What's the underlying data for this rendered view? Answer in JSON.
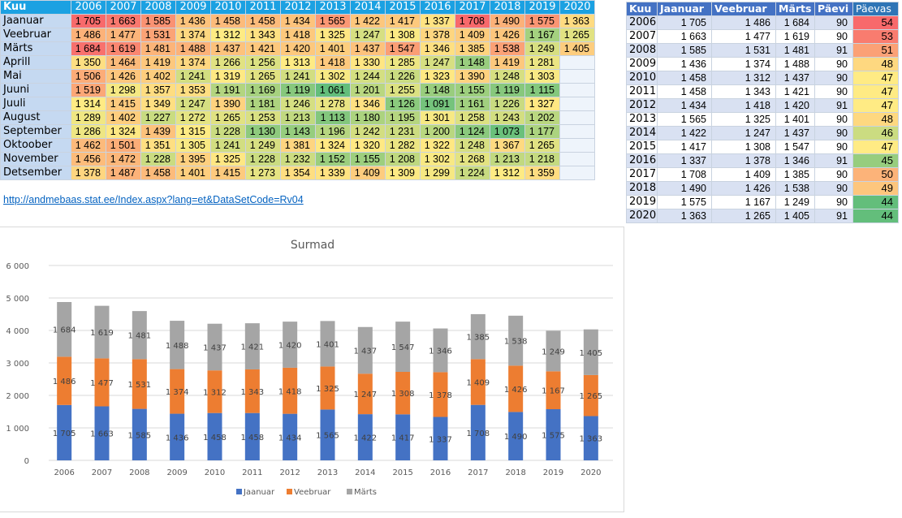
{
  "monthly_table": {
    "header_label": "Kuu",
    "years": [
      "2006",
      "2007",
      "2008",
      "2009",
      "2010",
      "2011",
      "2012",
      "2013",
      "2014",
      "2015",
      "2016",
      "2017",
      "2018",
      "2019",
      "2020"
    ],
    "rows": [
      {
        "month": "Jaanuar",
        "values": [
          1705,
          1663,
          1585,
          1436,
          1458,
          1458,
          1434,
          1565,
          1422,
          1417,
          1337,
          1708,
          1490,
          1575,
          1363
        ]
      },
      {
        "month": "Veebruar",
        "values": [
          1486,
          1477,
          1531,
          1374,
          1312,
          1343,
          1418,
          1325,
          1247,
          1308,
          1378,
          1409,
          1426,
          1167,
          1265
        ]
      },
      {
        "month": "Märts",
        "values": [
          1684,
          1619,
          1481,
          1488,
          1437,
          1421,
          1420,
          1401,
          1437,
          1547,
          1346,
          1385,
          1538,
          1249,
          1405
        ]
      },
      {
        "month": "Aprill",
        "values": [
          1350,
          1464,
          1419,
          1374,
          1266,
          1256,
          1313,
          1418,
          1330,
          1285,
          1247,
          1148,
          1419,
          1281,
          null
        ]
      },
      {
        "month": "Mai",
        "values": [
          1506,
          1426,
          1402,
          1241,
          1319,
          1265,
          1241,
          1302,
          1244,
          1226,
          1323,
          1390,
          1248,
          1303,
          null
        ]
      },
      {
        "month": "Juuni",
        "values": [
          1519,
          1298,
          1357,
          1353,
          1191,
          1169,
          1119,
          1061,
          1201,
          1255,
          1148,
          1155,
          1119,
          1115,
          null
        ]
      },
      {
        "month": "Juuli",
        "values": [
          1314,
          1415,
          1349,
          1247,
          1390,
          1181,
          1246,
          1278,
          1346,
          1126,
          1091,
          1161,
          1226,
          1327,
          null
        ]
      },
      {
        "month": "August",
        "values": [
          1289,
          1402,
          1227,
          1272,
          1265,
          1253,
          1213,
          1113,
          1180,
          1195,
          1301,
          1258,
          1243,
          1202,
          null
        ]
      },
      {
        "month": "September",
        "values": [
          1286,
          1324,
          1439,
          1315,
          1228,
          1130,
          1143,
          1196,
          1242,
          1231,
          1200,
          1124,
          1073,
          1177,
          null
        ]
      },
      {
        "month": "Oktoober",
        "values": [
          1462,
          1501,
          1351,
          1305,
          1241,
          1249,
          1381,
          1324,
          1320,
          1282,
          1322,
          1248,
          1367,
          1265,
          null
        ]
      },
      {
        "month": "November",
        "values": [
          1456,
          1472,
          1228,
          1395,
          1325,
          1228,
          1232,
          1152,
          1155,
          1208,
          1302,
          1268,
          1213,
          1218,
          null
        ]
      },
      {
        "month": "Detsember",
        "values": [
          1378,
          1487,
          1458,
          1401,
          1415,
          1273,
          1354,
          1339,
          1409,
          1309,
          1299,
          1224,
          1312,
          1359,
          null
        ]
      }
    ],
    "color_scale": {
      "low": "#63be7b",
      "mid": "#ffeb84",
      "high": "#f8696b"
    }
  },
  "source_link": {
    "text": "http://andmebaas.stat.ee/Index.aspx?lang=et&DataSetCode=Rv04"
  },
  "yearly_table": {
    "headers": [
      "Kuu",
      "Jaanuar",
      "Veebruar",
      "Märts",
      "Päevi",
      "Päevas"
    ],
    "rows": [
      {
        "year": "2006",
        "jaanuar": 1705,
        "veebruar": 1486,
        "marts": 1684,
        "paevi": 90,
        "paevas": 54
      },
      {
        "year": "2007",
        "jaanuar": 1663,
        "veebruar": 1477,
        "marts": 1619,
        "paevi": 90,
        "paevas": 53
      },
      {
        "year": "2008",
        "jaanuar": 1585,
        "veebruar": 1531,
        "marts": 1481,
        "paevi": 91,
        "paevas": 51
      },
      {
        "year": "2009",
        "jaanuar": 1436,
        "veebruar": 1374,
        "marts": 1488,
        "paevi": 90,
        "paevas": 48
      },
      {
        "year": "2010",
        "jaanuar": 1458,
        "veebruar": 1312,
        "marts": 1437,
        "paevi": 90,
        "paevas": 47
      },
      {
        "year": "2011",
        "jaanuar": 1458,
        "veebruar": 1343,
        "marts": 1421,
        "paevi": 90,
        "paevas": 47
      },
      {
        "year": "2012",
        "jaanuar": 1434,
        "veebruar": 1418,
        "marts": 1420,
        "paevi": 91,
        "paevas": 47
      },
      {
        "year": "2013",
        "jaanuar": 1565,
        "veebruar": 1325,
        "marts": 1401,
        "paevi": 90,
        "paevas": 48
      },
      {
        "year": "2014",
        "jaanuar": 1422,
        "veebruar": 1247,
        "marts": 1437,
        "paevi": 90,
        "paevas": 46
      },
      {
        "year": "2015",
        "jaanuar": 1417,
        "veebruar": 1308,
        "marts": 1547,
        "paevi": 90,
        "paevas": 47
      },
      {
        "year": "2016",
        "jaanuar": 1337,
        "veebruar": 1378,
        "marts": 1346,
        "paevi": 91,
        "paevas": 45
      },
      {
        "year": "2017",
        "jaanuar": 1708,
        "veebruar": 1409,
        "marts": 1385,
        "paevi": 90,
        "paevas": 50
      },
      {
        "year": "2018",
        "jaanuar": 1490,
        "veebruar": 1426,
        "marts": 1538,
        "paevi": 90,
        "paevas": 49
      },
      {
        "year": "2019",
        "jaanuar": 1575,
        "veebruar": 1167,
        "marts": 1249,
        "paevi": 90,
        "paevas": 44
      },
      {
        "year": "2020",
        "jaanuar": 1363,
        "veebruar": 1265,
        "marts": 1405,
        "paevi": 91,
        "paevas": 44
      }
    ]
  },
  "chart_data": {
    "type": "bar",
    "stacked": true,
    "title": "Surmad",
    "xlabel": "",
    "ylabel": "",
    "ylim": [
      0,
      6000
    ],
    "yticks": [
      0,
      1000,
      2000,
      3000,
      4000,
      5000,
      6000
    ],
    "ytick_labels": [
      "0",
      "1 000",
      "2 000",
      "3 000",
      "4 000",
      "5 000",
      "6 000"
    ],
    "grid": true,
    "legend_position": "bottom",
    "categories": [
      "2006",
      "2007",
      "2008",
      "2009",
      "2010",
      "2011",
      "2012",
      "2013",
      "2014",
      "2015",
      "2016",
      "2017",
      "2018",
      "2019",
      "2020"
    ],
    "series": [
      {
        "name": "Jaanuar",
        "color": "#4472c4",
        "values": [
          1705,
          1663,
          1585,
          1436,
          1458,
          1458,
          1434,
          1565,
          1422,
          1417,
          1337,
          1708,
          1490,
          1575,
          1363
        ]
      },
      {
        "name": "Veebruar",
        "color": "#ed7d31",
        "values": [
          1486,
          1477,
          1531,
          1374,
          1312,
          1343,
          1418,
          1325,
          1247,
          1308,
          1378,
          1409,
          1426,
          1167,
          1265
        ]
      },
      {
        "name": "Märts",
        "color": "#a5a5a5",
        "values": [
          1684,
          1619,
          1481,
          1488,
          1437,
          1421,
          1420,
          1401,
          1437,
          1547,
          1346,
          1385,
          1538,
          1249,
          1405
        ]
      }
    ]
  }
}
